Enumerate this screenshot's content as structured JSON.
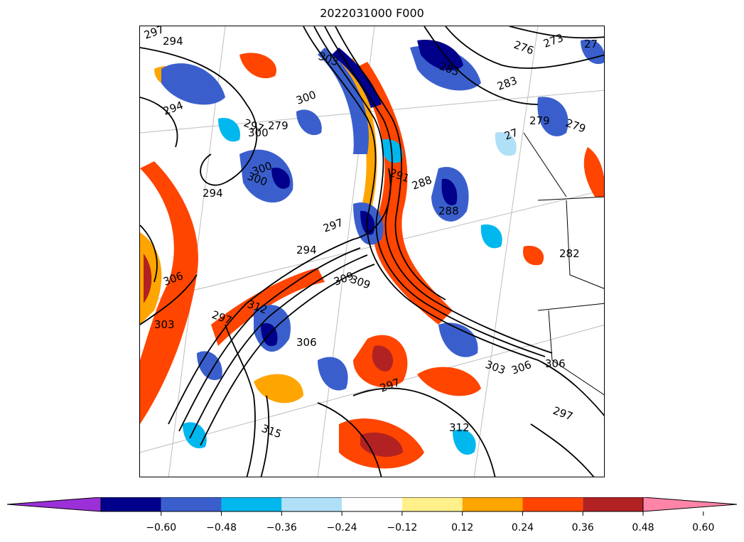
{
  "title": "2022031000 F000",
  "colorbar": {
    "colors": [
      "#9b30d9",
      "#00008b",
      "#3a5fcd",
      "#00b7ee",
      "#b0e0f8",
      "#ffffff",
      "#fff08c",
      "#ffa500",
      "#ff4500",
      "#b22222",
      "#ff85a8"
    ],
    "tick_labels": [
      "−0.60",
      "−0.48",
      "−0.36",
      "−0.24",
      "−0.12",
      "0.12",
      "0.24",
      "0.36",
      "0.48",
      "0.60"
    ],
    "extend": "both"
  },
  "contour_labels": [
    "297",
    "294",
    "303",
    "300",
    "279",
    "297",
    "294",
    "300",
    "276",
    "273",
    "27",
    "283",
    "283",
    "279",
    "279",
    "27",
    "294",
    "300",
    "297",
    "294",
    "291",
    "288",
    "288",
    "309",
    "306",
    "303",
    "312",
    "309",
    "306",
    "297",
    "300",
    "282",
    "303",
    "306",
    "306",
    "297",
    "297",
    "312",
    "315"
  ]
}
